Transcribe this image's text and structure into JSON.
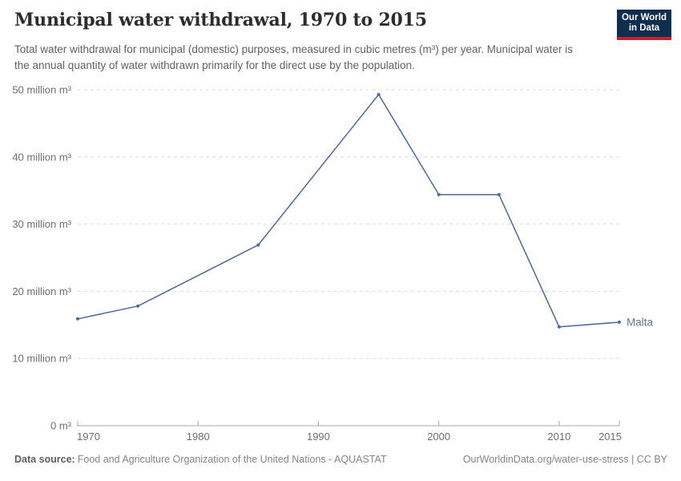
{
  "header": {
    "title": "Municipal water withdrawal, 1970 to 2015",
    "subtitle": "Total water withdrawal for municipal (domestic) purposes, measured in cubic metres (m³) per year. Municipal water is the annual quantity of water withdrawn primarily for the direct use by the population.",
    "logo": {
      "line1": "Our World",
      "line2": "in Data"
    }
  },
  "chart_data": {
    "type": "line",
    "title": "Municipal water withdrawal, 1970 to 2015",
    "xlabel": "",
    "ylabel": "",
    "xlim": [
      1970,
      2015
    ],
    "ylim": [
      0,
      50
    ],
    "grid": "horizontal-dashed",
    "unit": "million m³",
    "series": [
      {
        "name": "Malta",
        "x": [
          1970,
          1975,
          1985,
          1995,
          2000,
          2005,
          2010,
          2015
        ],
        "values": [
          15.9,
          17.8,
          26.9,
          49.3,
          34.4,
          34.4,
          14.7,
          15.4
        ]
      }
    ],
    "x_ticks": [
      {
        "value": 1970,
        "label": "1970"
      },
      {
        "value": 1980,
        "label": "1980"
      },
      {
        "value": 1990,
        "label": "1990"
      },
      {
        "value": 2000,
        "label": "2000"
      },
      {
        "value": 2010,
        "label": "2010"
      },
      {
        "value": 2015,
        "label": "2015"
      }
    ],
    "y_ticks": [
      {
        "value": 0,
        "label": "0 m³"
      },
      {
        "value": 10,
        "label": "10 million m³"
      },
      {
        "value": 20,
        "label": "20 million m³"
      },
      {
        "value": 30,
        "label": "30 million m³"
      },
      {
        "value": 40,
        "label": "40 million m³"
      },
      {
        "value": 50,
        "label": "50 million m³"
      }
    ]
  },
  "colors": {
    "line": "#4c6a9c",
    "entity_label": "#5c7ba8",
    "gridline": "#dcdcdc",
    "axis": "#a8a8a8",
    "tick_label": "#6e6e6e",
    "logo_bg": "#0f2d4e",
    "logo_stripe": "#c0232c"
  },
  "footer": {
    "datasource_label": "Data source:",
    "datasource_text": "Food and Agriculture Organization of the United Nations - AQUASTAT",
    "credit": "OurWorldinData.org/water-use-stress | CC BY"
  }
}
